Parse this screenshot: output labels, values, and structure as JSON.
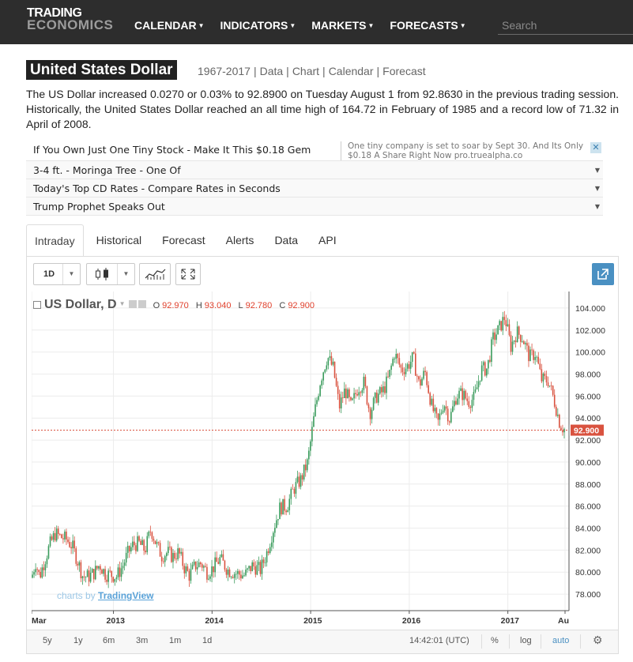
{
  "header": {
    "logo_line1": "TRADING",
    "logo_line2": "ECONOMICS",
    "nav": [
      {
        "label": "CALENDAR"
      },
      {
        "label": "INDICATORS"
      },
      {
        "label": "MARKETS"
      },
      {
        "label": "FORECASTS"
      }
    ],
    "search_placeholder": "Search"
  },
  "page": {
    "title": "United States Dollar",
    "range_label": "1967-2017",
    "links": [
      "Data",
      "Chart",
      "Calendar",
      "Forecast"
    ],
    "summary": "The US Dollar increased 0.0270 or 0.03% to 92.8900 on Tuesday August 1 from 92.8630 in the previous trading session. Historically, the United States Dollar reached an all time high of 164.72 in February of 1985 and a record low of 71.32 in April of 2008."
  },
  "ads": {
    "rows": [
      "If You Own Just One Tiny Stock - Make It This $0.18 Gem",
      "3-4 ft. - Moringa Tree - One Of",
      "Today's Top CD Rates - Compare Rates in Seconds",
      "Trump Prophet Speaks Out"
    ],
    "first_desc": "One tiny company is set to soar by Sept 30. And Its Only $0.18 A Share Right Now pro.truealpha.co",
    "close": "✕"
  },
  "tabs": [
    "Intraday",
    "Historical",
    "Forecast",
    "Alerts",
    "Data",
    "API"
  ],
  "toolbar": {
    "interval": "1D",
    "icons": [
      "candles-icon",
      "indicators-icon",
      "fullscreen-icon",
      "popout-icon"
    ]
  },
  "legend": {
    "symbol": "US Dollar, D",
    "o_label": "O",
    "o_value": "92.970",
    "h_label": "H",
    "h_value": "93.040",
    "l_label": "L",
    "l_value": "92.780",
    "c_label": "C",
    "c_value": "92.900"
  },
  "watermark": {
    "prefix": "charts by",
    "brand": "TradingView"
  },
  "bottom": {
    "ranges": [
      "5y",
      "1y",
      "6m",
      "3m",
      "1m",
      "1d"
    ],
    "clock": "14:42:01 (UTC)",
    "pct": "%",
    "log": "log",
    "auto": "auto"
  },
  "colors": {
    "up": "#3a9b5c",
    "down": "#d9523f",
    "last_price_bg": "#d9523f",
    "accent": "#4a90c2"
  },
  "chart_data": {
    "type": "candlestick",
    "ylim": [
      76.5,
      105.5
    ],
    "y_ticks": [
      "104.000",
      "102.000",
      "100.000",
      "98.000",
      "96.000",
      "94.000",
      "92.000",
      "90.000",
      "88.000",
      "86.000",
      "84.000",
      "82.000",
      "80.000",
      "78.000"
    ],
    "y_tick_values": [
      104,
      102,
      100,
      98,
      96,
      94,
      92,
      90,
      88,
      86,
      84,
      82,
      80,
      78
    ],
    "x_ticks": [
      "Mar",
      "2013",
      "2014",
      "2015",
      "2016",
      "2017",
      "Au"
    ],
    "x_tick_values": [
      2012.17,
      2013.0,
      2014.0,
      2015.0,
      2016.0,
      2017.0,
      2017.58
    ],
    "xlim": [
      2012.17,
      2017.62
    ],
    "last_price": 92.9,
    "last_price_label": "92.900",
    "close_path": [
      [
        2012.17,
        79.5
      ],
      [
        2012.21,
        80.9
      ],
      [
        2012.25,
        79.6
      ],
      [
        2012.3,
        81.0
      ],
      [
        2012.36,
        82.6
      ],
      [
        2012.41,
        83.5
      ],
      [
        2012.46,
        83.2
      ],
      [
        2012.52,
        83.0
      ],
      [
        2012.58,
        82.4
      ],
      [
        2012.63,
        81.2
      ],
      [
        2012.69,
        79.6
      ],
      [
        2012.75,
        79.6
      ],
      [
        2012.81,
        80.0
      ],
      [
        2012.86,
        80.7
      ],
      [
        2012.92,
        79.8
      ],
      [
        2012.97,
        79.8
      ],
      [
        2013.03,
        79.6
      ],
      [
        2013.09,
        80.5
      ],
      [
        2013.15,
        81.8
      ],
      [
        2013.2,
        82.5
      ],
      [
        2013.26,
        82.6
      ],
      [
        2013.32,
        82.0
      ],
      [
        2013.38,
        83.9
      ],
      [
        2013.44,
        82.4
      ],
      [
        2013.49,
        81.5
      ],
      [
        2013.55,
        81.8
      ],
      [
        2013.6,
        81.4
      ],
      [
        2013.66,
        81.8
      ],
      [
        2013.72,
        80.4
      ],
      [
        2013.77,
        79.7
      ],
      [
        2013.83,
        80.6
      ],
      [
        2013.89,
        80.8
      ],
      [
        2013.95,
        80.0
      ],
      [
        2014.0,
        80.3
      ],
      [
        2014.08,
        81.2
      ],
      [
        2014.16,
        80.2
      ],
      [
        2014.24,
        79.9
      ],
      [
        2014.33,
        79.7
      ],
      [
        2014.41,
        80.6
      ],
      [
        2014.49,
        80.2
      ],
      [
        2014.55,
        81.6
      ],
      [
        2014.62,
        83.9
      ],
      [
        2014.69,
        85.9
      ],
      [
        2014.76,
        86.0
      ],
      [
        2014.83,
        87.6
      ],
      [
        2014.9,
        88.4
      ],
      [
        2014.97,
        90.0
      ],
      [
        2015.04,
        94.5
      ],
      [
        2015.1,
        97.5
      ],
      [
        2015.17,
        99.6
      ],
      [
        2015.23,
        98.5
      ],
      [
        2015.29,
        95.0
      ],
      [
        2015.35,
        96.6
      ],
      [
        2015.41,
        95.0
      ],
      [
        2015.48,
        96.8
      ],
      [
        2015.54,
        97.2
      ],
      [
        2015.6,
        94.5
      ],
      [
        2015.67,
        96.0
      ],
      [
        2015.73,
        96.4
      ],
      [
        2015.79,
        97.6
      ],
      [
        2015.85,
        99.9
      ],
      [
        2015.92,
        98.4
      ],
      [
        2015.98,
        98.7
      ],
      [
        2016.04,
        99.5
      ],
      [
        2016.1,
        97.0
      ],
      [
        2016.16,
        98.2
      ],
      [
        2016.23,
        95.0
      ],
      [
        2016.29,
        93.5
      ],
      [
        2016.35,
        95.5
      ],
      [
        2016.41,
        93.9
      ],
      [
        2016.48,
        96.1
      ],
      [
        2016.54,
        96.2
      ],
      [
        2016.6,
        95.5
      ],
      [
        2016.66,
        95.8
      ],
      [
        2016.73,
        98.4
      ],
      [
        2016.79,
        98.5
      ],
      [
        2016.85,
        101.2
      ],
      [
        2016.91,
        102.1
      ],
      [
        2016.97,
        103.2
      ],
      [
        2017.03,
        100.5
      ],
      [
        2017.09,
        101.8
      ],
      [
        2017.15,
        101.3
      ],
      [
        2017.22,
        99.5
      ],
      [
        2017.28,
        99.9
      ],
      [
        2017.34,
        97.5
      ],
      [
        2017.41,
        97.4
      ],
      [
        2017.47,
        95.6
      ],
      [
        2017.53,
        93.4
      ],
      [
        2017.58,
        92.9
      ]
    ]
  }
}
